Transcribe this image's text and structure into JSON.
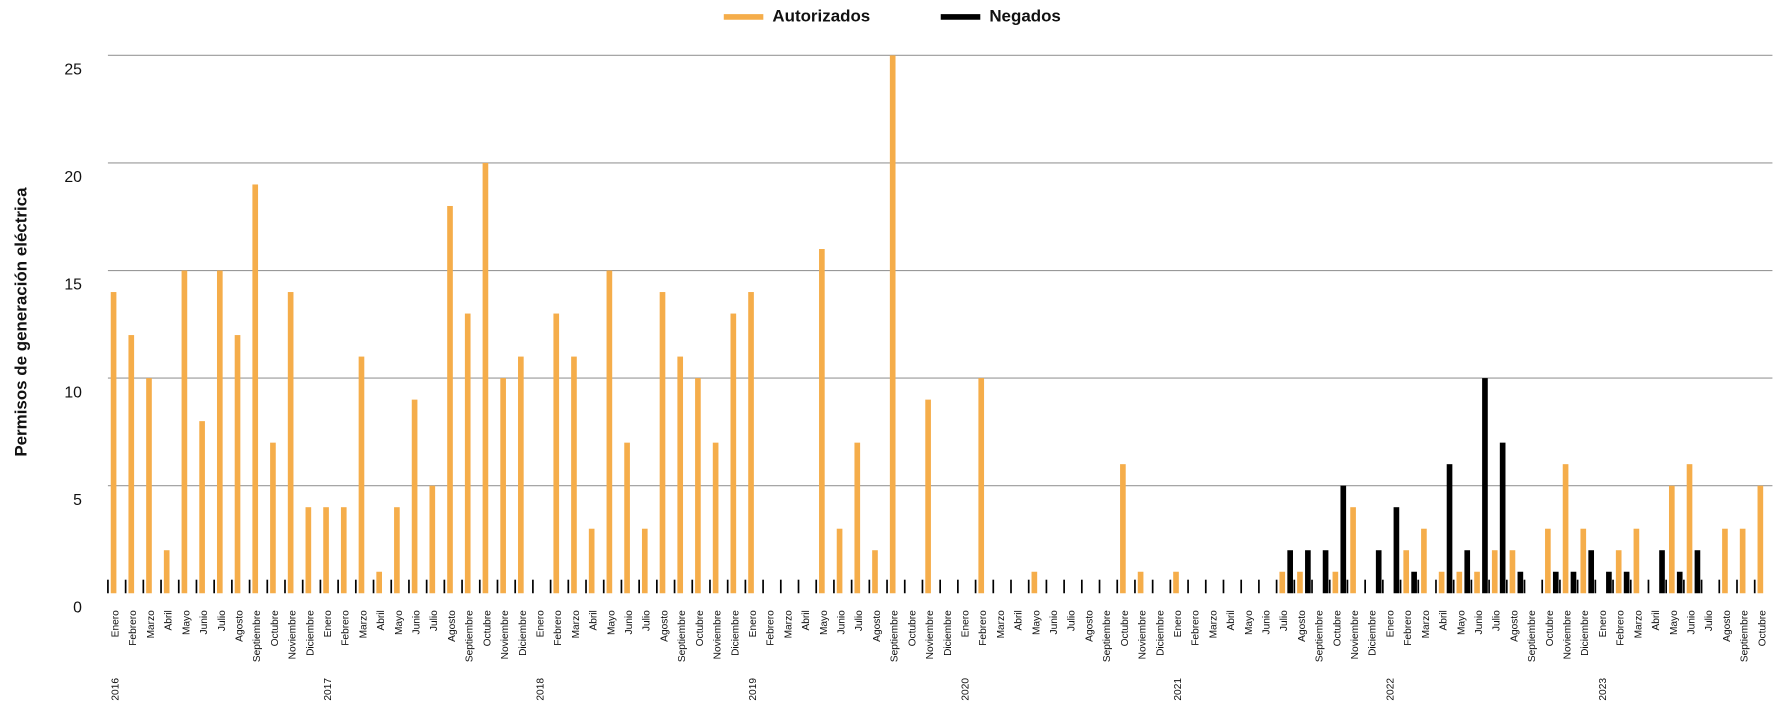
{
  "chart_data": {
    "type": "bar",
    "y_label": "Permisos de generación eléctrica",
    "categories": [
      "Enero",
      "Febrero",
      "Marzo",
      "Abril",
      "Mayo",
      "Junio",
      "Julio",
      "Agosto",
      "Septiembre",
      "Octubre",
      "Noviembre",
      "Diciembre",
      "Enero",
      "Febrero",
      "Marzo",
      "Abril",
      "Mayo",
      "Junio",
      "Julio",
      "Agosto",
      "Septiembre",
      "Octubre",
      "Noviembre",
      "Diciembre",
      "Enero",
      "Febrero",
      "Marzo",
      "Abril",
      "Mayo",
      "Junio",
      "Julio",
      "Agosto",
      "Septiembre",
      "Octubre",
      "Noviembre",
      "Diciembre",
      "Enero",
      "Febrero",
      "Marzo",
      "Abril",
      "Mayo",
      "Junio",
      "Julio",
      "Agosto",
      "Septiembre",
      "Octubre",
      "Noviembre",
      "Diciembre",
      "Enero",
      "Febrero",
      "Marzo",
      "Abril",
      "Mayo",
      "Junio",
      "Julio",
      "Agosto",
      "Septiembre",
      "Octubre",
      "Noviembre",
      "Diciembre",
      "Enero",
      "Febrero",
      "Marzo",
      "Abril",
      "Mayo",
      "Junio",
      "Julio",
      "Agosto",
      "Septiembre",
      "Octubre",
      "Noviembre",
      "Diciembre",
      "Enero",
      "Febrero",
      "Marzo",
      "Abril",
      "Mayo",
      "Junio",
      "Julio",
      "Agosto",
      "Septiembre",
      "Octubre",
      "Noviembre",
      "Diciembre",
      "Enero",
      "Febrero",
      "Marzo",
      "Abril",
      "Mayo",
      "Junio",
      "Julio",
      "Agosto",
      "Septiembre",
      "Octubre"
    ],
    "years": [
      "2016",
      "2017",
      "2018",
      "2019",
      "2020",
      "2021",
      "2022",
      "2023"
    ],
    "series": [
      {
        "name": "Autorizados",
        "color": "#f5ad4a",
        "values": [
          14,
          12,
          10,
          2,
          15,
          8,
          15,
          12,
          19,
          7,
          14,
          4,
          4,
          4,
          11,
          1,
          4,
          9,
          5,
          18,
          13,
          20,
          10,
          11,
          0,
          13,
          11,
          3,
          15,
          7,
          3,
          14,
          11,
          10,
          7,
          13,
          14,
          0,
          0,
          0,
          16,
          3,
          7,
          2,
          25,
          0,
          9,
          0,
          0,
          10,
          0,
          0,
          1,
          0,
          0,
          0,
          0,
          6,
          1,
          0,
          1,
          0,
          0,
          0,
          0,
          0,
          1,
          1,
          0,
          1,
          4,
          0,
          0,
          2,
          3,
          1,
          1,
          1,
          2,
          2,
          0,
          3,
          6,
          3,
          0,
          2,
          3,
          0,
          5,
          6,
          0,
          3,
          3,
          5
        ]
      },
      {
        "name": "Negados",
        "color": "#000000",
        "values": [
          0,
          0,
          0,
          0,
          0,
          0,
          0,
          0,
          0,
          0,
          0,
          0,
          0,
          0,
          0,
          0,
          0,
          0,
          0,
          0,
          0,
          0,
          0,
          0,
          0,
          0,
          0,
          0,
          0,
          0,
          0,
          0,
          0,
          0,
          0,
          0,
          0,
          0,
          0,
          0,
          0,
          0,
          0,
          0,
          0,
          0,
          0,
          0,
          0,
          0,
          0,
          0,
          0,
          0,
          0,
          0,
          0,
          0,
          0,
          0,
          0,
          0,
          0,
          0,
          0,
          0,
          2,
          2,
          2,
          5,
          0,
          2,
          4,
          1,
          0,
          6,
          2,
          10,
          7,
          1,
          0,
          1,
          1,
          2,
          1,
          1,
          0,
          2,
          1,
          2,
          0,
          0,
          0,
          0
        ]
      }
    ],
    "ylim": [
      0,
      25
    ],
    "yticks": [
      0,
      5,
      10,
      15,
      20,
      25
    ],
    "grid": true,
    "legend": "top"
  }
}
